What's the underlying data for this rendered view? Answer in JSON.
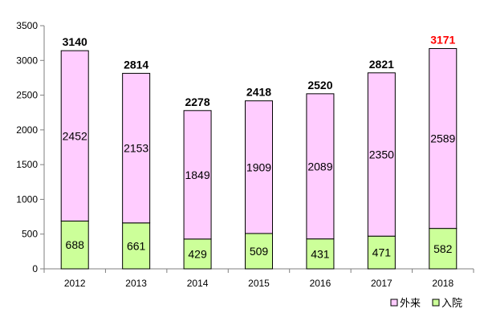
{
  "chart_data": {
    "type": "bar",
    "stacked": true,
    "categories": [
      "2012",
      "2013",
      "2014",
      "2015",
      "2016",
      "2017",
      "2018"
    ],
    "series": [
      {
        "name": "入院",
        "values": [
          688,
          661,
          429,
          509,
          431,
          471,
          582
        ],
        "color": "#ccff99"
      },
      {
        "name": "外来",
        "values": [
          2452,
          2153,
          1849,
          1909,
          2089,
          2350,
          2589
        ],
        "color": "#ffccff"
      }
    ],
    "totals": [
      3140,
      2814,
      2278,
      2418,
      2520,
      2821,
      3171
    ],
    "total_label_colors": [
      "#000000",
      "#000000",
      "#000000",
      "#000000",
      "#000000",
      "#000000",
      "#ff0000"
    ],
    "ylim": [
      0,
      3500
    ],
    "yticks": [
      0,
      500,
      1000,
      1500,
      2000,
      2500,
      3000,
      3500
    ],
    "grid": false,
    "legend": {
      "position": "bottom-right",
      "order": [
        "外来",
        "入院"
      ]
    },
    "colors": {
      "axis": "#7f7f7f",
      "bar_border": "#000000"
    }
  }
}
